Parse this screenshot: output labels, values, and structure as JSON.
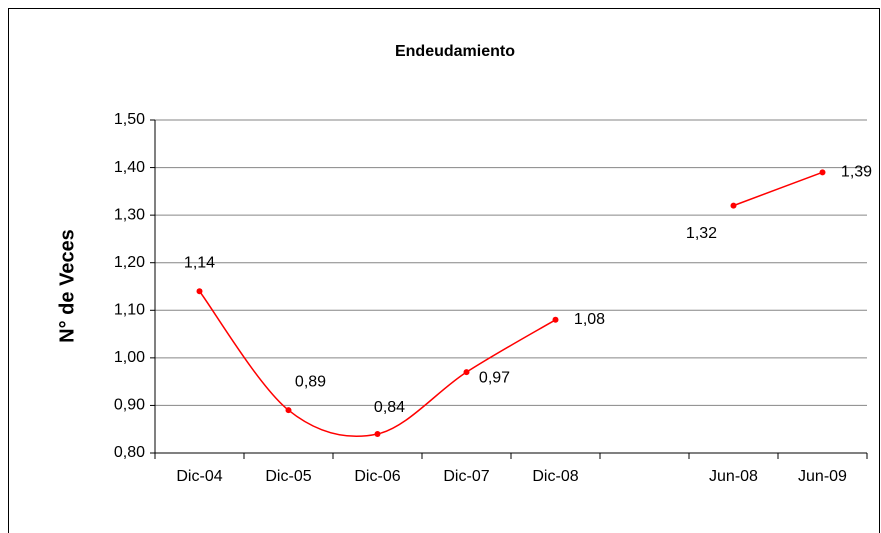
{
  "chart_data": {
    "type": "line",
    "title": "Endeudamiento",
    "y_label": "N° de Veces",
    "categories": [
      "Dic-04",
      "Dic-05",
      "Dic-06",
      "Dic-07",
      "Dic-08",
      null,
      "Jun-08",
      "Jun-09"
    ],
    "series": [
      {
        "name": "Endeudamiento",
        "color": "#ff0000",
        "values": [
          1.14,
          0.89,
          0.84,
          0.97,
          1.08,
          null,
          1.32,
          1.39
        ],
        "value_labels": [
          "1,14",
          "0,89",
          "0,84",
          "0,97",
          "1,08",
          null,
          "1,32",
          "1,39"
        ]
      }
    ],
    "ylim": [
      0.8,
      1.5
    ],
    "yticks": [
      {
        "value": 0.8,
        "label": "0,80"
      },
      {
        "value": 0.9,
        "label": "0,90"
      },
      {
        "value": 1.0,
        "label": "1,00"
      },
      {
        "value": 1.1,
        "label": "1,10"
      },
      {
        "value": 1.2,
        "label": "1,20"
      },
      {
        "value": 1.3,
        "label": "1,30"
      },
      {
        "value": 1.4,
        "label": "1,40"
      },
      {
        "value": 1.5,
        "label": "1,50"
      }
    ],
    "grid": true,
    "smooth": true
  }
}
